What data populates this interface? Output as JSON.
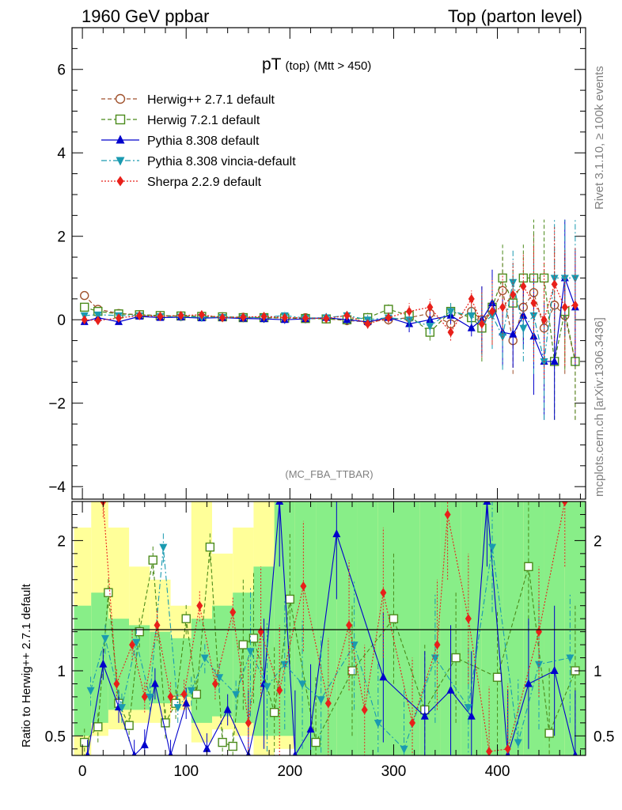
{
  "header": {
    "left": "1960 GeV ppbar",
    "right": "Top (parton level)"
  },
  "side_labels": {
    "rivet": "Rivet 3.1.10, ≥ 100k events",
    "mcplots": "mcplots.cern.ch [arXiv:1306.3436]"
  },
  "chart_data": [
    {
      "type": "line",
      "panel": "main",
      "title": "pT",
      "title_sub1": "(top)",
      "title_sub2": "(Mtt > 450)",
      "watermark": "(MC_FBA_TTBAR)",
      "xlim": [
        -10,
        485
      ],
      "ylim": [
        -4.3,
        7.0
      ],
      "yticks": [
        -4,
        -2,
        0,
        2,
        4,
        6
      ],
      "ytick_labels": [
        "−4",
        "−2",
        "0",
        "2",
        "4",
        "6"
      ],
      "legend_position": "top-left",
      "series": [
        {
          "name": "Herwig++ 2.7.1 default",
          "color": "#a0522d",
          "marker": "open-circle",
          "line": "dashed",
          "x": [
            2,
            15,
            35,
            55,
            75,
            95,
            115,
            135,
            155,
            175,
            195,
            215,
            235,
            255,
            275,
            295,
            315,
            335,
            355,
            375,
            385,
            395,
            405,
            415,
            425,
            435,
            445,
            455,
            465,
            475
          ],
          "y": [
            0.58,
            0.25,
            0.15,
            0.12,
            0.1,
            0.08,
            0.08,
            0.07,
            0.06,
            0.05,
            0.04,
            0.05,
            0.02,
            -0.02,
            -0.05,
            0.0,
            0.05,
            0.15,
            -0.1,
            0.2,
            0.0,
            0.2,
            0.7,
            -0.5,
            0.3,
            0.65,
            -0.2,
            0.35,
            0.1,
            -1.0
          ]
        },
        {
          "name": "Herwig 7.2.1 default",
          "color": "#4a8a1a",
          "marker": "open-square",
          "line": "dashed",
          "x": [
            2,
            15,
            35,
            55,
            75,
            95,
            115,
            135,
            155,
            175,
            195,
            215,
            235,
            255,
            275,
            295,
            315,
            335,
            355,
            375,
            385,
            395,
            405,
            415,
            425,
            435,
            445,
            455,
            465,
            475
          ],
          "y": [
            0.3,
            0.2,
            0.14,
            0.12,
            0.1,
            0.09,
            0.08,
            0.07,
            0.05,
            0.05,
            0.04,
            0.03,
            0.02,
            0.0,
            0.05,
            0.25,
            0.1,
            -0.3,
            0.2,
            0.05,
            -0.2,
            0.3,
            1.0,
            0.4,
            1.0,
            1.0,
            1.0,
            -1.0,
            0.2,
            -1.0
          ]
        },
        {
          "name": "Pythia 8.308 default",
          "color": "#0000cc",
          "marker": "filled-triangle-up",
          "line": "solid",
          "x": [
            2,
            15,
            35,
            55,
            75,
            95,
            115,
            135,
            155,
            175,
            195,
            215,
            235,
            255,
            275,
            295,
            315,
            335,
            355,
            375,
            385,
            395,
            405,
            415,
            425,
            435,
            445,
            455,
            465,
            475
          ],
          "y": [
            -0.05,
            0.05,
            -0.05,
            0.08,
            0.05,
            0.06,
            0.04,
            0.05,
            0.03,
            0.02,
            0.0,
            0.02,
            0.05,
            0.0,
            -0.05,
            0.05,
            -0.1,
            0.0,
            0.1,
            -0.2,
            0.0,
            0.4,
            -0.3,
            -0.35,
            0.1,
            -0.4,
            -1.0,
            -1.0,
            1.0,
            0.3
          ]
        },
        {
          "name": "Pythia 8.308 vincia-default",
          "color": "#1a9ab0",
          "marker": "filled-triangle-down",
          "line": "dashdot",
          "x": [
            2,
            15,
            35,
            55,
            75,
            95,
            115,
            135,
            155,
            175,
            195,
            215,
            235,
            255,
            275,
            295,
            315,
            335,
            355,
            375,
            385,
            395,
            405,
            415,
            425,
            435,
            445,
            455,
            465,
            475
          ],
          "y": [
            0.1,
            0.12,
            0.1,
            0.1,
            0.08,
            0.07,
            0.06,
            0.06,
            0.05,
            0.06,
            0.1,
            0.04,
            0.05,
            0.1,
            0.0,
            0.05,
            0.0,
            -0.15,
            0.2,
            0.1,
            -0.1,
            0.1,
            -0.4,
            0.9,
            -0.2,
            0.1,
            -1.0,
            1.0,
            1.0,
            1.0
          ]
        },
        {
          "name": "Sherpa 2.2.9 default",
          "color": "#e8201a",
          "marker": "filled-diamond",
          "line": "dotted",
          "x": [
            2,
            15,
            35,
            55,
            75,
            95,
            115,
            135,
            155,
            175,
            195,
            215,
            235,
            255,
            275,
            295,
            315,
            335,
            355,
            375,
            385,
            395,
            405,
            415,
            425,
            435,
            445,
            455,
            465,
            475
          ],
          "y": [
            0.0,
            -0.02,
            0.04,
            0.1,
            0.08,
            0.1,
            0.12,
            0.05,
            0.06,
            0.08,
            0.05,
            0.04,
            0.03,
            0.1,
            -0.1,
            0.05,
            0.2,
            0.3,
            -0.3,
            0.5,
            -0.1,
            0.2,
            0.3,
            0.6,
            0.8,
            0.4,
            0.0,
            0.85,
            0.3,
            0.35
          ]
        }
      ]
    },
    {
      "type": "line",
      "panel": "ratio",
      "ylabel": "Ratio to Herwig++ 2.7.1 default",
      "xlim": [
        -10,
        485
      ],
      "ylim": [
        0.35,
        2.3
      ],
      "xticks": [
        0,
        100,
        200,
        300,
        400
      ],
      "yticks": [
        0.5,
        1,
        2
      ],
      "ytick_labels": [
        "0.5",
        "1",
        "2"
      ],
      "bands": {
        "yellow_color": "#ffff99",
        "green_color": "#88ee88",
        "x": [
          2,
          15,
          35,
          55,
          75,
          95,
          115,
          135,
          155,
          175,
          195,
          215,
          235,
          255,
          275,
          295,
          315,
          335,
          355,
          375,
          395,
          415,
          435,
          455,
          475
        ],
        "yellow": [
          [
            0.35,
            2.1
          ],
          [
            0.5,
            2.3
          ],
          [
            0.55,
            2.1
          ],
          [
            0.6,
            1.8
          ],
          [
            0.6,
            1.7
          ],
          [
            0.7,
            1.5
          ],
          [
            0.45,
            2.3
          ],
          [
            0.55,
            1.9
          ],
          [
            0.5,
            2.1
          ],
          [
            0.35,
            2.3
          ],
          [
            0.4,
            2.3
          ],
          [
            0.35,
            2.3
          ],
          [
            0.35,
            2.3
          ],
          [
            0.35,
            2.3
          ],
          [
            0.35,
            2.3
          ],
          [
            0.35,
            2.3
          ],
          [
            0.35,
            2.3
          ],
          [
            0.35,
            2.3
          ],
          [
            0.35,
            2.3
          ],
          [
            0.35,
            2.3
          ],
          [
            0.35,
            2.3
          ],
          [
            0.35,
            2.3
          ],
          [
            0.35,
            2.3
          ],
          [
            0.35,
            2.3
          ],
          [
            0.35,
            2.3
          ]
        ],
        "green": [
          [
            0.5,
            1.5
          ],
          [
            0.6,
            1.6
          ],
          [
            0.7,
            1.4
          ],
          [
            0.7,
            1.35
          ],
          [
            0.75,
            1.3
          ],
          [
            0.8,
            1.25
          ],
          [
            0.6,
            1.4
          ],
          [
            0.65,
            1.5
          ],
          [
            0.6,
            1.6
          ],
          [
            0.5,
            1.8
          ],
          [
            0.5,
            2.3
          ],
          [
            0.35,
            2.3
          ],
          [
            0.35,
            2.3
          ],
          [
            0.35,
            2.3
          ],
          [
            0.35,
            2.3
          ],
          [
            0.35,
            2.3
          ],
          [
            0.35,
            2.3
          ],
          [
            0.35,
            2.3
          ],
          [
            0.35,
            2.3
          ],
          [
            0.35,
            2.3
          ],
          [
            0.35,
            2.3
          ],
          [
            0.35,
            2.3
          ],
          [
            0.35,
            2.3
          ],
          [
            0.35,
            2.3
          ],
          [
            0.35,
            2.3
          ]
        ]
      },
      "series": [
        {
          "name": "Herwig 7.2.1 default",
          "x": [
            2,
            15,
            25,
            35,
            45,
            55,
            68,
            80,
            90,
            100,
            110,
            123,
            135,
            145,
            155,
            165,
            185,
            200,
            225,
            260,
            300,
            330,
            360,
            400,
            430,
            450,
            475
          ],
          "y": [
            0.45,
            0.57,
            1.6,
            0.75,
            0.58,
            1.3,
            1.85,
            0.6,
            0.75,
            1.4,
            0.82,
            1.95,
            0.45,
            0.42,
            1.2,
            1.25,
            0.68,
            1.55,
            0.45,
            1.0,
            1.4,
            0.7,
            1.1,
            0.95,
            1.8,
            0.52,
            1.0
          ]
        },
        {
          "name": "Pythia 8.308 default",
          "x": [
            5,
            20,
            35,
            50,
            60,
            70,
            85,
            100,
            120,
            140,
            160,
            175,
            190,
            205,
            220,
            245,
            290,
            330,
            355,
            375,
            390,
            410,
            430,
            455,
            475
          ],
          "y": [
            0.35,
            1.05,
            0.72,
            0.35,
            0.43,
            0.9,
            0.35,
            0.75,
            0.4,
            0.7,
            0.35,
            0.9,
            2.3,
            0.35,
            0.55,
            2.05,
            0.95,
            0.65,
            0.85,
            0.65,
            2.3,
            0.35,
            0.9,
            1.0,
            0.35
          ]
        },
        {
          "name": "Pythia 8.308 vincia-default",
          "x": [
            8,
            22,
            38,
            52,
            65,
            78,
            92,
            105,
            118,
            132,
            148,
            162,
            178,
            195,
            212,
            230,
            262,
            285,
            310,
            340,
            372,
            395,
            420,
            440,
            470
          ],
          "y": [
            0.85,
            1.25,
            0.72,
            1.22,
            0.8,
            1.95,
            0.72,
            0.85,
            1.1,
            0.95,
            0.82,
            1.15,
            0.88,
            1.05,
            0.9,
            0.78,
            1.2,
            0.6,
            0.4,
            1.1,
            0.72,
            1.95,
            0.45,
            1.05,
            1.1
          ]
        },
        {
          "name": "Sherpa 2.2.9 default",
          "x": [
            20,
            33,
            48,
            60,
            72,
            85,
            98,
            113,
            128,
            145,
            160,
            172,
            190,
            213,
            237,
            257,
            272,
            290,
            318,
            342,
            352,
            372,
            392,
            410,
            440,
            465
          ],
          "y": [
            2.3,
            0.9,
            1.2,
            0.8,
            1.35,
            0.8,
            0.82,
            1.5,
            0.9,
            1.45,
            0.6,
            1.3,
            0.85,
            1.65,
            0.75,
            1.35,
            0.7,
            1.6,
            0.6,
            1.2,
            2.2,
            1.4,
            0.38,
            0.4,
            1.3,
            2.3
          ]
        }
      ]
    }
  ]
}
